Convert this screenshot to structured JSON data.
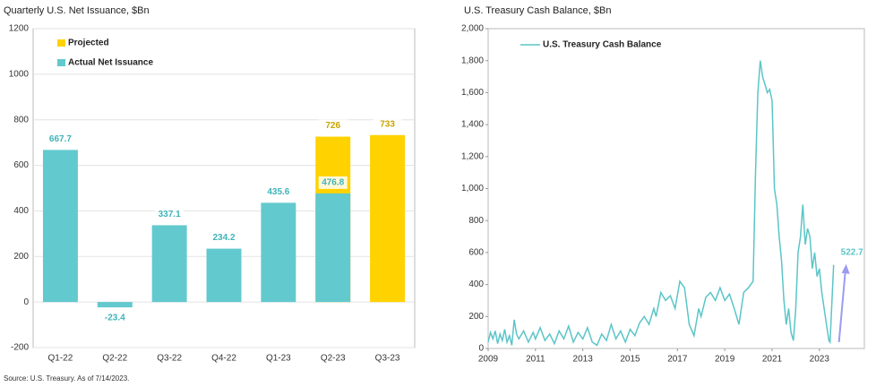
{
  "footnote": "Source: U.S. Treasury. As of 7/14/2023.",
  "chart_data": [
    {
      "type": "bar",
      "title": "Quarterly U.S. Net Issuance, $Bn",
      "categories": [
        "Q1-22",
        "Q2-22",
        "Q3-22",
        "Q4-22",
        "Q1-23",
        "Q2-23",
        "Q3-23"
      ],
      "series": [
        {
          "name": "Projected",
          "color": "#FFD200",
          "label_color": "#C9A400",
          "values": [
            null,
            null,
            null,
            null,
            null,
            726,
            733
          ]
        },
        {
          "name": "Actual Net Issuance",
          "color": "#62C9CE",
          "label_color": "#3FB3B8",
          "values": [
            667.7,
            -23.4,
            337.1,
            234.2,
            435.6,
            476.8,
            null
          ]
        }
      ],
      "ylim": [
        -200,
        1200
      ],
      "yticks": [
        -200,
        0,
        200,
        400,
        600,
        800,
        1000,
        1200
      ],
      "grid": true,
      "legend": "top-left"
    },
    {
      "type": "line",
      "title": "U.S. Treasury Cash Balance, $Bn",
      "x": [
        2009.0,
        2009.1,
        2009.2,
        2009.3,
        2009.4,
        2009.5,
        2009.6,
        2009.7,
        2009.8,
        2009.9,
        2010.0,
        2010.1,
        2010.2,
        2010.3,
        2010.5,
        2010.7,
        2010.9,
        2011.0,
        2011.2,
        2011.4,
        2011.6,
        2011.8,
        2012.0,
        2012.2,
        2012.4,
        2012.6,
        2012.8,
        2013.0,
        2013.2,
        2013.4,
        2013.6,
        2013.8,
        2014.0,
        2014.2,
        2014.4,
        2014.6,
        2014.8,
        2015.0,
        2015.2,
        2015.4,
        2015.6,
        2015.8,
        2016.0,
        2016.1,
        2016.3,
        2016.5,
        2016.7,
        2016.9,
        2017.1,
        2017.3,
        2017.5,
        2017.7,
        2017.9,
        2018.0,
        2018.2,
        2018.4,
        2018.6,
        2018.8,
        2019.0,
        2019.2,
        2019.4,
        2019.6,
        2019.8,
        2020.0,
        2020.2,
        2020.3,
        2020.4,
        2020.5,
        2020.6,
        2020.7,
        2020.8,
        2020.9,
        2021.0,
        2021.1,
        2021.2,
        2021.3,
        2021.4,
        2021.5,
        2021.6,
        2021.7,
        2021.8,
        2021.9,
        2022.0,
        2022.1,
        2022.2,
        2022.3,
        2022.4,
        2022.5,
        2022.6,
        2022.7,
        2022.8,
        2022.9,
        2023.0,
        2023.1,
        2023.2,
        2023.3,
        2023.4,
        2023.45,
        2023.6
      ],
      "series": [
        {
          "name": "U.S. Treasury Cash Balance",
          "color": "#5BC5C8",
          "values": [
            40,
            100,
            60,
            110,
            30,
            90,
            50,
            120,
            40,
            80,
            20,
            180,
            90,
            60,
            110,
            40,
            100,
            60,
            130,
            50,
            90,
            30,
            110,
            60,
            140,
            40,
            100,
            60,
            130,
            40,
            20,
            90,
            50,
            150,
            60,
            110,
            40,
            120,
            80,
            160,
            200,
            150,
            250,
            200,
            350,
            300,
            330,
            250,
            420,
            380,
            150,
            80,
            250,
            200,
            320,
            350,
            300,
            380,
            300,
            340,
            250,
            150,
            350,
            380,
            420,
            1100,
            1600,
            1800,
            1700,
            1650,
            1600,
            1620,
            1550,
            1000,
            900,
            700,
            550,
            300,
            150,
            250,
            100,
            50,
            250,
            600,
            700,
            900,
            650,
            750,
            700,
            500,
            600,
            450,
            500,
            350,
            250,
            150,
            50,
            40,
            522.7
          ]
        }
      ],
      "xlim": [
        2009,
        2024.9
      ],
      "xticks": [
        2009,
        2011,
        2013,
        2015,
        2017,
        2019,
        2021,
        2023
      ],
      "ylim": [
        0,
        2000
      ],
      "yticks": [
        0,
        200,
        400,
        600,
        800,
        {
          "value": 1000,
          "label": "1,000"
        },
        {
          "value": 1200,
          "label": "1,200"
        },
        {
          "value": 1400,
          "label": "1,400"
        },
        {
          "value": 1600,
          "label": "1,600"
        },
        {
          "value": 1800,
          "label": "1,800"
        },
        {
          "value": 2000,
          "label": "2,000"
        }
      ],
      "grid": false,
      "legend": "top-left",
      "annotations": [
        "522.7"
      ],
      "annotation_color": "#9B9CF0"
    }
  ]
}
